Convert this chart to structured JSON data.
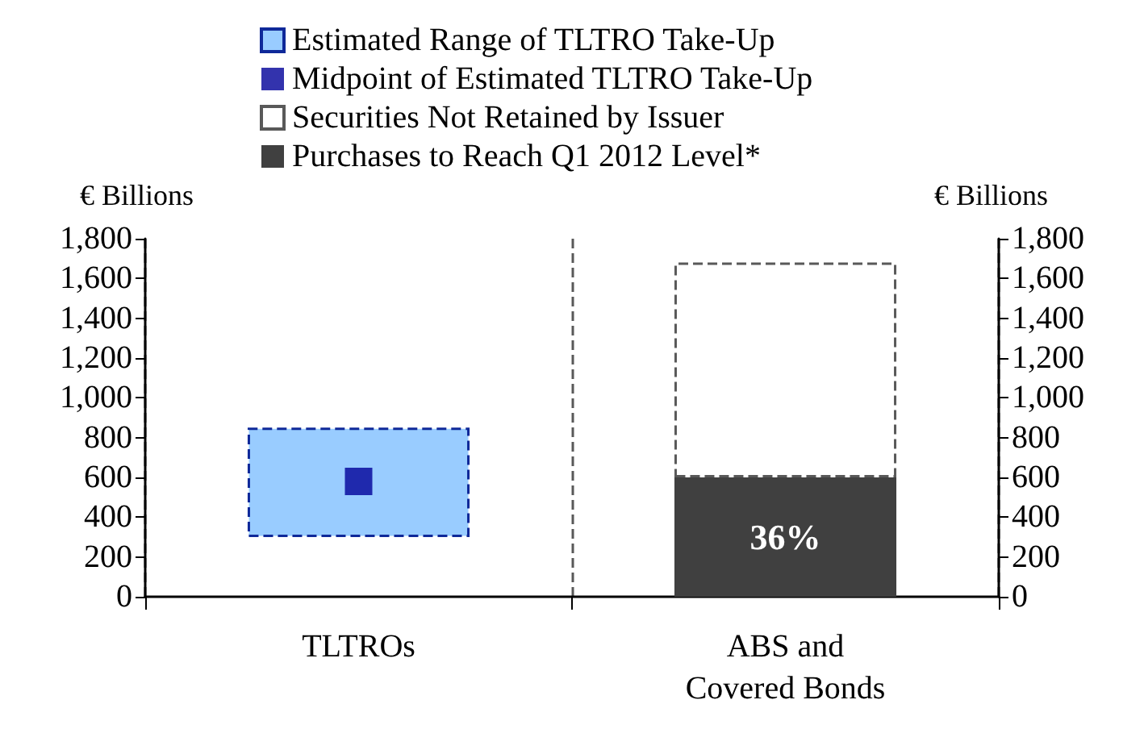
{
  "chart_data": {
    "type": "bar",
    "categories": [
      "TLTROs",
      "ABS and\nCovered Bonds"
    ],
    "series": [
      {
        "name": "Estimated Range of TLTRO Take-Up",
        "color": "#99ccff",
        "line_style": "dashed",
        "base": [
          300,
          null
        ],
        "values": [
          550,
          null
        ]
      },
      {
        "name": "Midpoint of Estimated TLTRO Take-Up",
        "type": "scatter",
        "marker": "square",
        "color": "#000099",
        "x": [
          "TLTROs"
        ],
        "values": [
          580
        ]
      },
      {
        "name": "Securities Not Retained by Issuer",
        "color": "#ffffff",
        "line_style": "dashed",
        "base": [
          null,
          600
        ],
        "values": [
          null,
          1080
        ]
      },
      {
        "name": "Purchases to Reach Q1 2012 Level*",
        "color": "#404040",
        "values": [
          null,
          600
        ]
      }
    ],
    "annotations": [
      "36%"
    ],
    "ylabel": "€ Billions",
    "y2label": "€ Billions",
    "ylim": [
      0,
      1800
    ],
    "yticks": [
      0,
      200,
      400,
      600,
      800,
      {
        "value": 1000,
        "label": "1,000"
      },
      {
        "value": 1200,
        "label": "1,200"
      },
      {
        "value": 1400,
        "label": "1,400"
      },
      {
        "value": 1600,
        "label": "1,600"
      },
      {
        "value": 1800,
        "label": "1,800"
      }
    ],
    "y2lim": [
      0,
      1800
    ],
    "y2ticks": [
      0,
      200,
      400,
      600,
      800,
      {
        "value": 1000,
        "label": "1,000"
      },
      {
        "value": 1200,
        "label": "1,200"
      },
      {
        "value": 1400,
        "label": "1,400"
      },
      {
        "value": 1600,
        "label": "1,600"
      },
      {
        "value": 1800,
        "label": "1,800"
      }
    ],
    "grid": "x",
    "legend": "top"
  }
}
